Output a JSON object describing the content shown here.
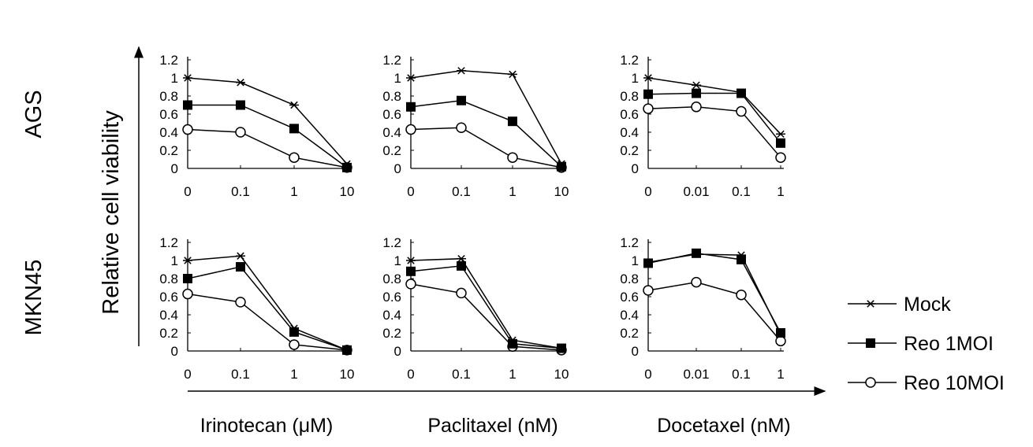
{
  "chart_data": {
    "type": "line",
    "ylabel": "Relative cell viability",
    "rows": [
      "AGS",
      "MKN45"
    ],
    "columns": [
      {
        "xlabel": "Irinotecan (μM)",
        "categories": [
          "0",
          "0.1",
          "1",
          "10"
        ]
      },
      {
        "xlabel": "Paclitaxel (nM)",
        "categories": [
          "0",
          "0.1",
          "1",
          "10"
        ]
      },
      {
        "xlabel": "Docetaxel (nM)",
        "categories": [
          "0",
          "0.01",
          "0.1",
          "1"
        ]
      }
    ],
    "ylim": [
      0,
      1.2
    ],
    "yticks": [
      "0",
      "0.2",
      "0.4",
      "0.6",
      "0.8",
      "1",
      "1.2"
    ],
    "legend": {
      "placement": "right",
      "entries": [
        {
          "name": "Mock",
          "marker": "asterisk"
        },
        {
          "name": "Reo 1MOI",
          "marker": "filled-square"
        },
        {
          "name": "Reo 10MOI",
          "marker": "open-circle"
        }
      ]
    },
    "panels": [
      {
        "row": "AGS",
        "drug": "Irinotecan",
        "series": [
          {
            "name": "Mock",
            "values": [
              1.0,
              0.95,
              0.7,
              0.05
            ]
          },
          {
            "name": "Reo 1MOI",
            "values": [
              0.7,
              0.7,
              0.44,
              0.01
            ]
          },
          {
            "name": "Reo 10MOI",
            "values": [
              0.43,
              0.4,
              0.12,
              0.01
            ]
          }
        ]
      },
      {
        "row": "AGS",
        "drug": "Paclitaxel",
        "series": [
          {
            "name": "Mock",
            "values": [
              1.0,
              1.08,
              1.04,
              0.05
            ]
          },
          {
            "name": "Reo 1MOI",
            "values": [
              0.68,
              0.75,
              0.52,
              0.02
            ]
          },
          {
            "name": "Reo 10MOI",
            "values": [
              0.43,
              0.45,
              0.12,
              0.01
            ]
          }
        ]
      },
      {
        "row": "AGS",
        "drug": "Docetaxel",
        "series": [
          {
            "name": "Mock",
            "values": [
              1.0,
              0.92,
              0.84,
              0.38
            ]
          },
          {
            "name": "Reo 1MOI",
            "values": [
              0.82,
              0.83,
              0.83,
              0.28
            ]
          },
          {
            "name": "Reo 10MOI",
            "values": [
              0.66,
              0.68,
              0.63,
              0.12
            ]
          }
        ]
      },
      {
        "row": "MKN45",
        "drug": "Irinotecan",
        "series": [
          {
            "name": "Mock",
            "values": [
              1.0,
              1.05,
              0.25,
              0.01
            ]
          },
          {
            "name": "Reo 1MOI",
            "values": [
              0.8,
              0.93,
              0.21,
              0.01
            ]
          },
          {
            "name": "Reo 10MOI",
            "values": [
              0.63,
              0.54,
              0.07,
              0.01
            ]
          }
        ]
      },
      {
        "row": "MKN45",
        "drug": "Paclitaxel",
        "series": [
          {
            "name": "Mock",
            "values": [
              1.0,
              1.02,
              0.12,
              0.03
            ]
          },
          {
            "name": "Reo 1MOI",
            "values": [
              0.88,
              0.94,
              0.08,
              0.03
            ]
          },
          {
            "name": "Reo 10MOI",
            "values": [
              0.74,
              0.64,
              0.05,
              0.01
            ]
          }
        ]
      },
      {
        "row": "MKN45",
        "drug": "Docetaxel",
        "series": [
          {
            "name": "Mock",
            "values": [
              0.98,
              1.07,
              1.06,
              0.18
            ]
          },
          {
            "name": "Reo 1MOI",
            "values": [
              0.97,
              1.08,
              1.01,
              0.2
            ]
          },
          {
            "name": "Reo 10MOI",
            "values": [
              0.67,
              0.76,
              0.62,
              0.11
            ]
          }
        ]
      }
    ],
    "grid": false,
    "colors": {
      "line": "#000000",
      "background": "#ffffff"
    }
  }
}
